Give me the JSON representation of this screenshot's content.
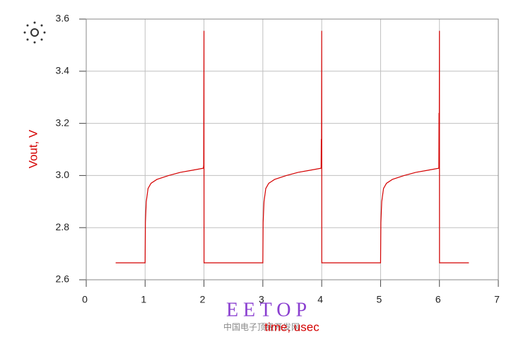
{
  "chart_data": {
    "type": "line",
    "xlabel": "time, usec",
    "ylabel": "Vout, V",
    "watermark": "E E T O P",
    "watermark_sub": "中国电子顶级开发网",
    "color": "#d40000",
    "x": [
      0.5,
      1.0,
      1.005,
      1.02,
      1.05,
      1.1,
      1.2,
      1.4,
      1.6,
      1.8,
      1.99,
      1.995,
      2.0,
      2.001,
      3.0,
      3.005,
      3.02,
      3.05,
      3.1,
      3.2,
      3.4,
      3.6,
      3.8,
      3.99,
      3.993,
      3.996,
      4.0,
      4.001,
      5.0,
      5.005,
      5.02,
      5.05,
      5.1,
      5.2,
      5.4,
      5.6,
      5.8,
      5.99,
      5.993,
      5.996,
      6.0,
      6.001,
      6.5
    ],
    "values": [
      2.665,
      2.665,
      2.82,
      2.9,
      2.95,
      2.97,
      2.985,
      3.0,
      3.012,
      3.02,
      3.028,
      3.04,
      3.555,
      2.665,
      2.665,
      2.82,
      2.9,
      2.95,
      2.97,
      2.985,
      3.0,
      3.012,
      3.02,
      3.028,
      3.14,
      3.03,
      3.555,
      2.665,
      2.665,
      2.82,
      2.9,
      2.95,
      2.97,
      2.985,
      3.0,
      3.012,
      3.02,
      3.028,
      3.24,
      3.03,
      3.555,
      2.665,
      2.665
    ],
    "xlim": [
      0,
      7
    ],
    "xticks": [
      0,
      1,
      2,
      3,
      4,
      5,
      6,
      7
    ],
    "ylim": [
      2.6,
      3.6
    ],
    "yticks": [
      2.6,
      2.8,
      {
        "value": 3,
        "label": "3.0"
      },
      3.2,
      3.4,
      3.6
    ],
    "grid": true
  }
}
